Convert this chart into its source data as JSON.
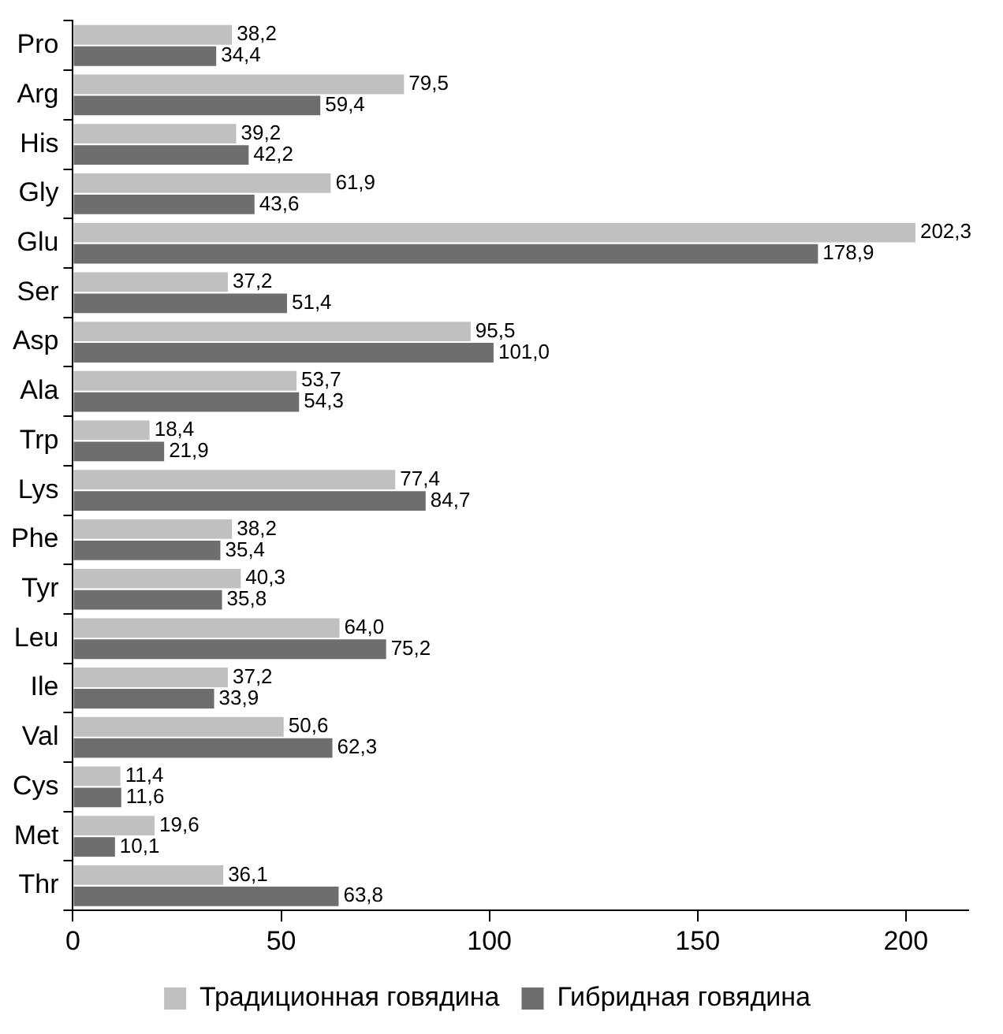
{
  "chart_data": {
    "type": "bar",
    "orientation": "horizontal",
    "categories": [
      "Pro",
      "Arg",
      "His",
      "Gly",
      "Glu",
      "Ser",
      "Asp",
      "Ala",
      "Trp",
      "Lys",
      "Phe",
      "Tyr",
      "Leu",
      "Ile",
      "Val",
      "Cys",
      "Met",
      "Thr"
    ],
    "series": [
      {
        "name": "Традиционная говядина",
        "color": "#c0c0c0",
        "values": [
          38.2,
          79.5,
          39.2,
          61.9,
          202.3,
          37.2,
          95.5,
          53.7,
          18.4,
          77.4,
          38.2,
          40.3,
          64.0,
          37.2,
          50.6,
          11.4,
          19.6,
          36.1
        ],
        "value_labels": [
          "38,2",
          "79,5",
          "39,2",
          "61,9",
          "202,3",
          "37,2",
          "95,5",
          "53,7",
          "18,4",
          "77,4",
          "38,2",
          "40,3",
          "64,0",
          "37,2",
          "50,6",
          "11,4",
          "19,6",
          "36,1"
        ]
      },
      {
        "name": "Гибридная говядина",
        "color": "#6e6e6e",
        "values": [
          34.4,
          59.4,
          42.2,
          43.6,
          178.9,
          51.4,
          101.0,
          54.3,
          21.9,
          84.7,
          35.4,
          35.8,
          75.2,
          33.9,
          62.3,
          11.6,
          10.1,
          63.8
        ],
        "value_labels": [
          "34,4",
          "59,4",
          "42,2",
          "43,6",
          "178,9",
          "51,4",
          "101,0",
          "54,3",
          "21,9",
          "84,7",
          "35,4",
          "35,8",
          "75,2",
          "33,9",
          "62,3",
          "11,6",
          "10,1",
          "63,8"
        ]
      }
    ],
    "xlim": [
      0,
      215
    ],
    "xticks": [
      0,
      50,
      100,
      150,
      200
    ],
    "grid": false,
    "legend": "bottom"
  }
}
